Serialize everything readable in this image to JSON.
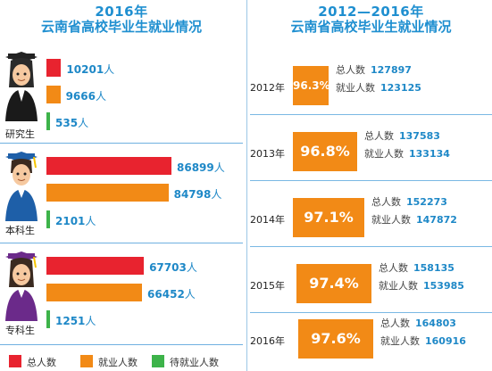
{
  "left": {
    "title": "2016年",
    "subtitle": "云南省高校毕业生就业情况",
    "groups": [
      {
        "name": "研究生",
        "total": "10201",
        "employed": "9666",
        "waiting": "535"
      },
      {
        "name": "本科生",
        "total": "86899",
        "employed": "84798",
        "waiting": "2101"
      },
      {
        "name": "专科生",
        "total": "67703",
        "employed": "66452",
        "waiting": "1251"
      }
    ],
    "unit": "人",
    "legend": [
      {
        "label": "总人数",
        "color": "#e8232f"
      },
      {
        "label": "就业人数",
        "color": "#f28a16"
      },
      {
        "label": "待就业人数",
        "color": "#3db34a"
      }
    ]
  },
  "right": {
    "title": "2012—2016年",
    "subtitle": "云南省高校毕业生就业情况",
    "total_label": "总人数",
    "employed_label": "就业人数",
    "years": [
      {
        "year": "2012年",
        "rate": "96.3%",
        "total": "127897",
        "employed": "123125"
      },
      {
        "year": "2013年",
        "rate": "96.8%",
        "total": "137583",
        "employed": "133134"
      },
      {
        "year": "2014年",
        "rate": "97.1%",
        "total": "152273",
        "employed": "147872"
      },
      {
        "year": "2015年",
        "rate": "97.4%",
        "total": "158135",
        "employed": "153985"
      },
      {
        "year": "2016年",
        "rate": "97.6%",
        "total": "164803",
        "employed": "160916"
      }
    ]
  },
  "chart_data": [
    {
      "type": "bar",
      "title": "2016年 云南省高校毕业生就业情况",
      "categories": [
        "研究生",
        "本科生",
        "专科生"
      ],
      "series": [
        {
          "name": "总人数",
          "values": [
            10201,
            86899,
            67703
          ]
        },
        {
          "name": "就业人数",
          "values": [
            9666,
            84798,
            66452
          ]
        },
        {
          "name": "待就业人数",
          "values": [
            535,
            2101,
            1251
          ]
        }
      ]
    },
    {
      "type": "table",
      "title": "2012—2016年 云南省高校毕业生就业情况",
      "x": [
        "2012年",
        "2013年",
        "2014年",
        "2015年",
        "2016年"
      ],
      "series": [
        {
          "name": "总人数",
          "values": [
            127897,
            137583,
            152273,
            158135,
            164803
          ]
        },
        {
          "name": "就业人数",
          "values": [
            123125,
            133134,
            147872,
            153985,
            160916
          ]
        }
      ],
      "rates": [
        "96.3%",
        "96.8%",
        "97.1%",
        "97.4%",
        "97.6%"
      ]
    }
  ]
}
